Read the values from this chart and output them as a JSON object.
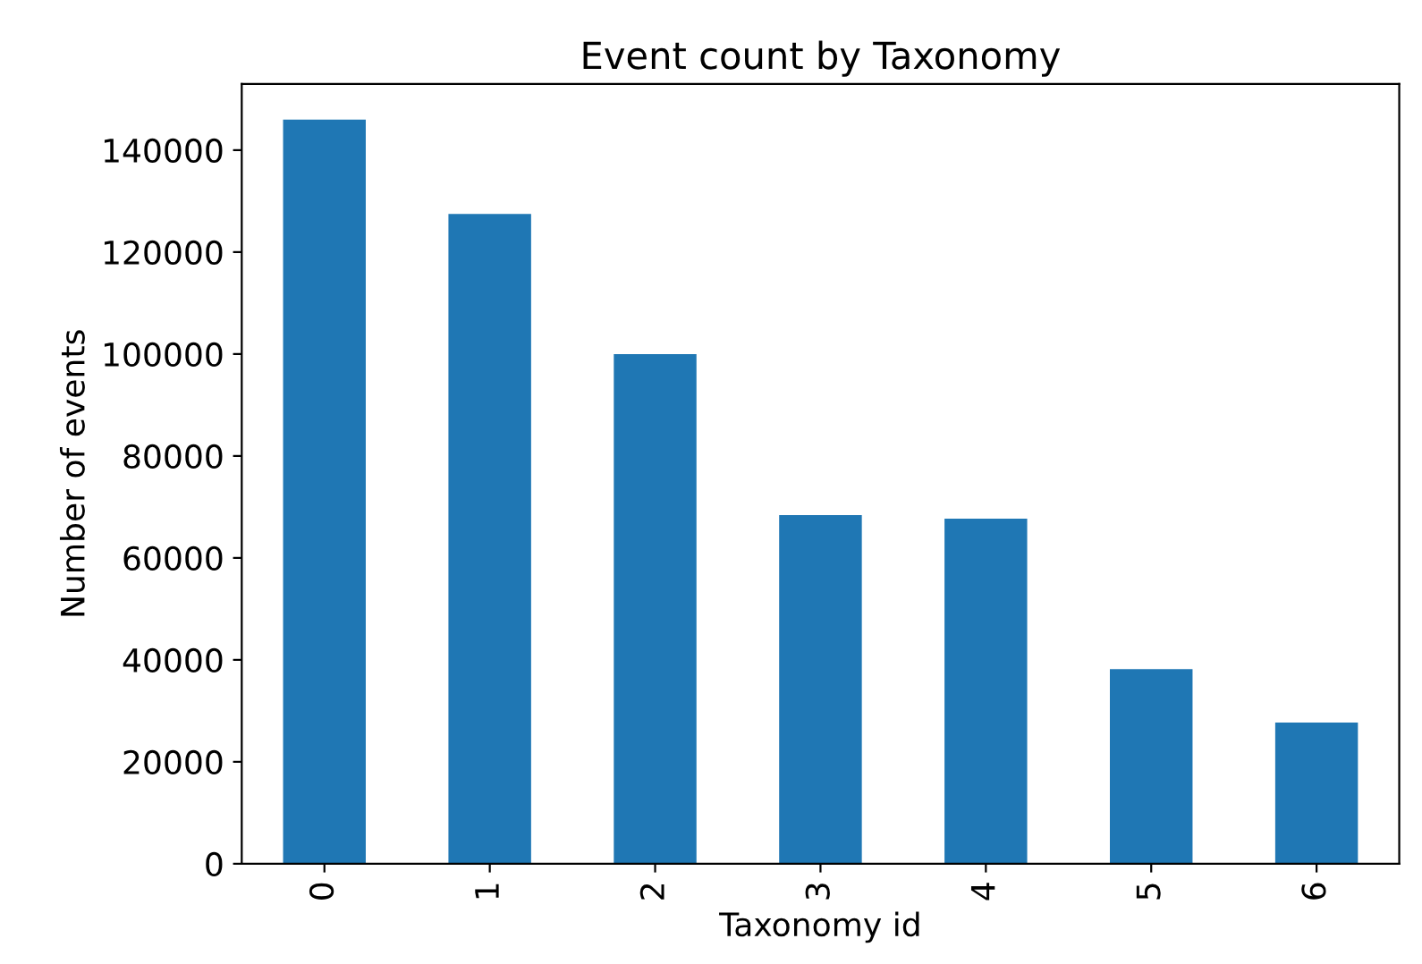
{
  "chart_data": {
    "type": "bar",
    "title": "Event count by Taxonomy",
    "xlabel": "Taxonomy id",
    "ylabel": "Number of events",
    "categories": [
      "0",
      "1",
      "2",
      "3",
      "4",
      "5",
      "6"
    ],
    "values": [
      146000,
      127500,
      100000,
      68400,
      67700,
      38200,
      27700
    ],
    "color": "#1f77b4",
    "ylim": [
      0,
      153000
    ],
    "yticks": [
      0,
      20000,
      40000,
      60000,
      80000,
      100000,
      120000,
      140000
    ],
    "grid": false
  }
}
